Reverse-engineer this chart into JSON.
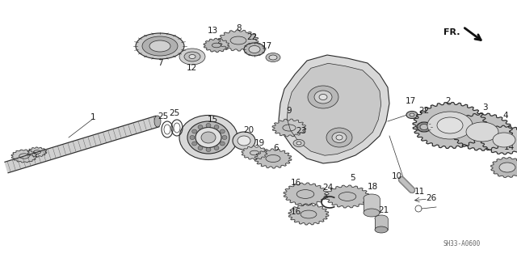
{
  "bg_color": "#ffffff",
  "fig_width": 6.4,
  "fig_height": 3.19,
  "dpi": 100,
  "diagram_code": "SH33-A0600",
  "fr_label": "FR.",
  "line_color": "#2a2a2a",
  "gray_color": "#888888"
}
